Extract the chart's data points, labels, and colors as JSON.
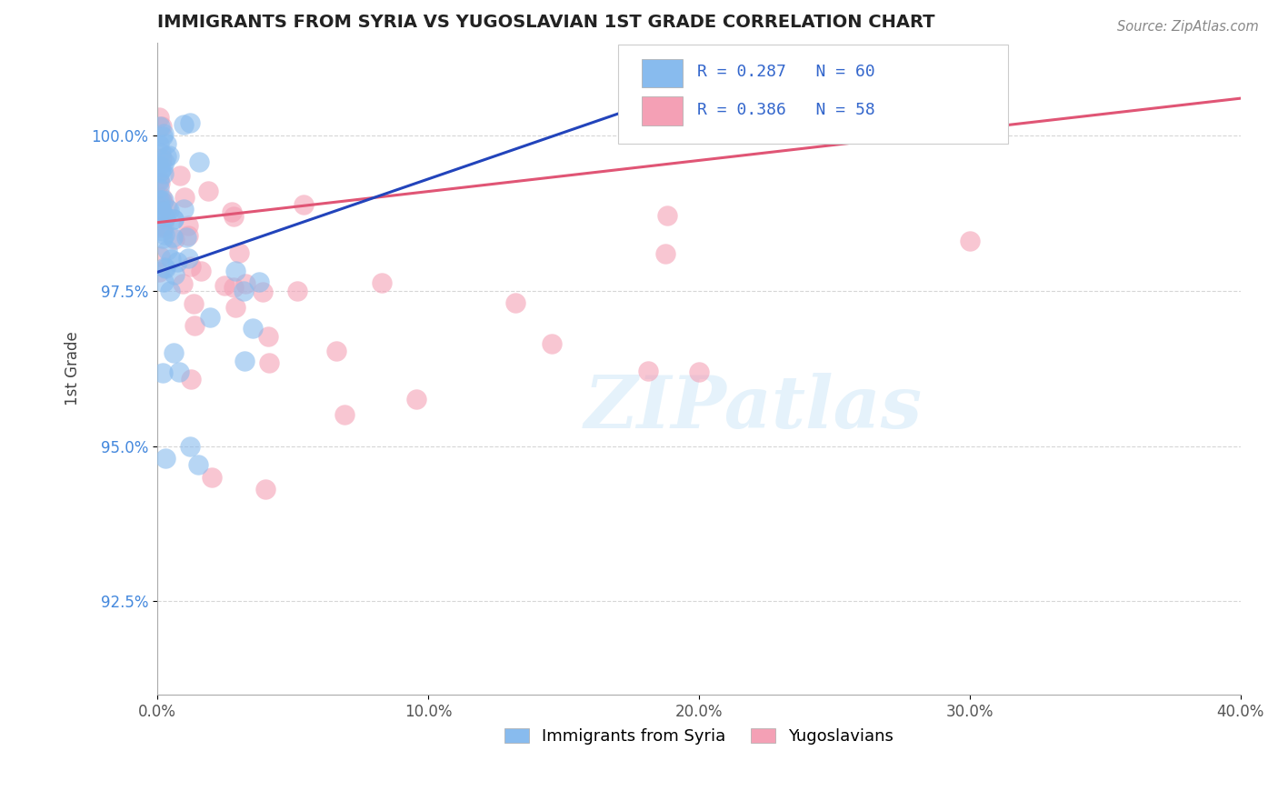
{
  "title": "IMMIGRANTS FROM SYRIA VS YUGOSLAVIAN 1ST GRADE CORRELATION CHART",
  "source_text": "Source: ZipAtlas.com",
  "ylabel": "1st Grade",
  "watermark": "ZIPatlas",
  "xlim": [
    0.0,
    40.0
  ],
  "ylim": [
    91.0,
    101.5
  ],
  "yticks": [
    92.5,
    95.0,
    97.5,
    100.0
  ],
  "ytick_labels": [
    "92.5%",
    "95.0%",
    "97.5%",
    "100.0%"
  ],
  "xticks": [
    0.0,
    10.0,
    20.0,
    30.0,
    40.0
  ],
  "xtick_labels": [
    "0.0%",
    "10.0%",
    "20.0%",
    "30.0%",
    "40.0%"
  ],
  "legend1_label": "Immigrants from Syria",
  "legend2_label": "Yugoslavians",
  "R1": 0.287,
  "N1": 60,
  "R2": 0.386,
  "N2": 58,
  "color_blue": "#88BBEE",
  "color_pink": "#F4A0B5",
  "color_blue_line": "#2244BB",
  "color_pink_line": "#E05575",
  "blue_line_x": [
    0.0,
    18.0
  ],
  "blue_line_y": [
    97.8,
    100.5
  ],
  "pink_line_x": [
    0.0,
    40.0
  ],
  "pink_line_y": [
    98.6,
    100.6
  ]
}
